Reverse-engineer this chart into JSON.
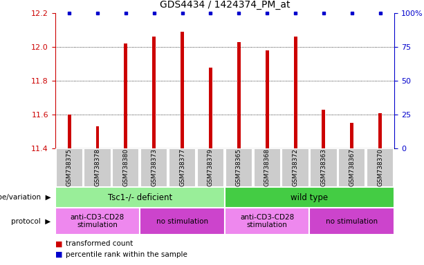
{
  "title": "GDS4434 / 1424374_PM_at",
  "samples": [
    "GSM738375",
    "GSM738378",
    "GSM738380",
    "GSM738373",
    "GSM738377",
    "GSM738379",
    "GSM738365",
    "GSM738368",
    "GSM738372",
    "GSM738363",
    "GSM738367",
    "GSM738370"
  ],
  "bar_values": [
    11.6,
    11.53,
    12.02,
    12.06,
    12.09,
    11.88,
    12.03,
    11.98,
    12.06,
    11.63,
    11.55,
    11.61
  ],
  "bar_color": "#cc0000",
  "dot_color": "#0000cc",
  "ylim_left": [
    11.4,
    12.2
  ],
  "ylim_right": [
    0,
    100
  ],
  "yticks_left": [
    11.4,
    11.6,
    11.8,
    12.0,
    12.2
  ],
  "yticks_right": [
    0,
    25,
    50,
    75,
    100
  ],
  "ytick_labels_right": [
    "0",
    "25",
    "50",
    "75",
    "100%"
  ],
  "grid_values": [
    11.6,
    11.8,
    12.0
  ],
  "genotype_groups": [
    {
      "label": "Tsc1-/- deficient",
      "start": 0,
      "end": 6,
      "color": "#99ee99"
    },
    {
      "label": "wild type",
      "start": 6,
      "end": 12,
      "color": "#44cc44"
    }
  ],
  "protocol_groups": [
    {
      "label": "anti-CD3-CD28\nstimulation",
      "start": 0,
      "end": 3,
      "color": "#ee88ee"
    },
    {
      "label": "no stimulation",
      "start": 3,
      "end": 6,
      "color": "#cc44cc"
    },
    {
      "label": "anti-CD3-CD28\nstimulation",
      "start": 6,
      "end": 9,
      "color": "#ee88ee"
    },
    {
      "label": "no stimulation",
      "start": 9,
      "end": 12,
      "color": "#cc44cc"
    }
  ],
  "legend_items": [
    {
      "color": "#cc0000",
      "label": "transformed count"
    },
    {
      "color": "#0000cc",
      "label": "percentile rank within the sample"
    }
  ],
  "left_axis_color": "#cc0000",
  "right_axis_color": "#0000cc",
  "bar_width": 0.12,
  "label_row_color": "#cccccc",
  "genotype_label": "genotype/variation",
  "protocol_label": "protocol"
}
